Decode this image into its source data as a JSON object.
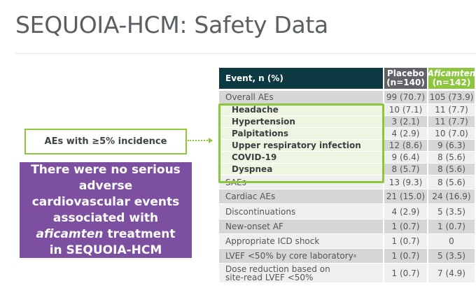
{
  "title": "SEQUOIA-HCM: Safety Data",
  "callout_label": "AEs with ≥5% incidence",
  "message": {
    "line1": "There were no serious adverse cardiovascular events associated with",
    "drug": "aficamten",
    "line2": "treatment in SEQUOIA-HCM"
  },
  "table": {
    "headers": {
      "event": "Event, n (%)",
      "placebo": "Placebo",
      "placebo_n": "(n=140)",
      "drug": "Aficamten",
      "drug_n": "(n=142)"
    },
    "rows": [
      {
        "event": "Overall AEs",
        "placebo": "99 (70.7)",
        "drug": "105 (73.9)"
      },
      {
        "event": "Headache",
        "placebo": "10 (7.1)",
        "drug": "11 (7.7)"
      },
      {
        "event": "Hypertension",
        "placebo": "3 (2.1)",
        "drug": "11 (7.7)"
      },
      {
        "event": "Palpitations",
        "placebo": "4 (2.9)",
        "drug": "10 (7.0)"
      },
      {
        "event": "Upper respiratory infection",
        "placebo": "12 (8.6)",
        "drug": "9 (6.3)"
      },
      {
        "event": "COVID-19",
        "placebo": "9 (6.4)",
        "drug": "8 (5.6)"
      },
      {
        "event": "Dyspnea",
        "placebo": "8 (5.7)",
        "drug": "8 (5.6)"
      },
      {
        "event": "SAEs",
        "placebo": "13 (9.3)",
        "drug": "8 (5.6)"
      },
      {
        "event": "Cardiac AEs",
        "placebo": "21 (15.0)",
        "drug": "24 (16.9)"
      },
      {
        "event": "Discontinuations",
        "placebo": "4 (2.9)",
        "drug": "5 (3.5)"
      },
      {
        "event": "New-onset AF",
        "placebo": "1 (0.7)",
        "drug": "1 (0.7)"
      },
      {
        "event": "Appropriate ICD shock",
        "placebo": "1 (0.7)",
        "drug": "0"
      },
      {
        "event": "LVEF <50% by core laboratory",
        "sup": "a",
        "placebo": "1 (0.7)",
        "drug": "5 (3.5)"
      },
      {
        "event": "Dose reduction based on site-read LVEF <50%",
        "placebo": "1 (0.7)",
        "drug": "7 (4.9)"
      }
    ]
  },
  "colors": {
    "teal": "#0d3a42",
    "green": "#8cc63f",
    "purple": "#7d4fa0",
    "grey": "#5f6368"
  }
}
